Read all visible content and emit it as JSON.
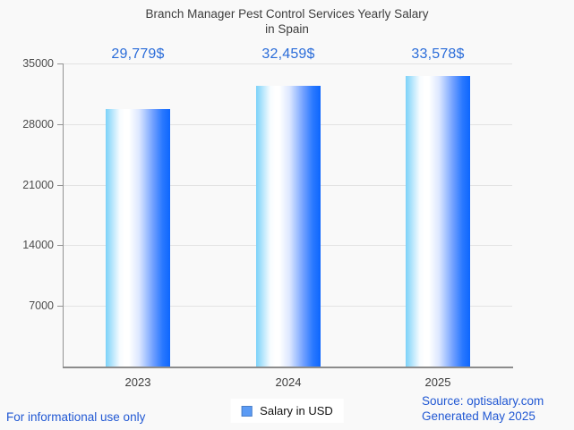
{
  "header": {
    "title_lines": [
      "Branch Manager Pest Control Services Yearly Salary",
      "in Spain"
    ]
  },
  "chart_data": {
    "type": "bar",
    "title": "Branch Manager Pest Control Services Yearly Salary in Spain",
    "categories": [
      "2023",
      "2024",
      "2025"
    ],
    "series": [
      {
        "name": "Salary in USD",
        "values": [
          29779,
          32459,
          33578
        ]
      }
    ],
    "value_labels": [
      "29,779$",
      "32,459$",
      "33,578$"
    ],
    "y_ticks": [
      35000,
      28000,
      21000,
      14000,
      7000
    ],
    "ylim": [
      0,
      35000
    ],
    "grid": true,
    "legend_position": "bottom",
    "xlabel": "",
    "ylabel": ""
  },
  "legend": {
    "label": "Salary in USD"
  },
  "footer": {
    "disclaimer": "For informational use only",
    "source_line1": "Source: optisalary.com",
    "source_line2": "Generated May 2025"
  },
  "colors": {
    "background": "#f9f9f9",
    "title_text": "#3d3d3d",
    "value_label_blue": "#2a6cd9",
    "footer_blue": "#2158d3",
    "axis_gray": "#8c8c8c",
    "gridline_gray": "#e3e3e3",
    "legend_marker": "#5b9bf5",
    "bar_gradient": [
      "#7bd2f9",
      "#ffffff",
      "#dce7ff",
      "#0d66fe"
    ]
  }
}
